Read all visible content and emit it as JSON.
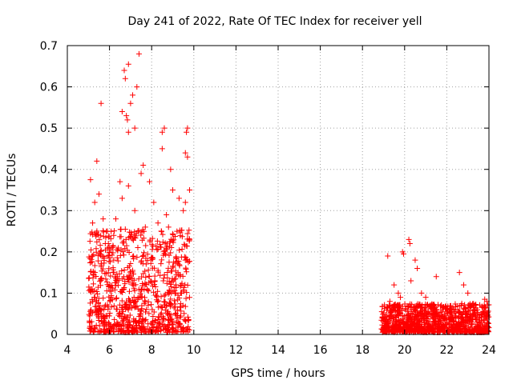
{
  "chart_data": {
    "type": "scatter",
    "title": "Day 241 of 2022, Rate Of TEC Index for receiver yell",
    "xlabel": "GPS time / hours",
    "ylabel": "ROTI / TECUs",
    "xlim": [
      4,
      24
    ],
    "ylim": [
      0,
      0.7
    ],
    "xticks": [
      "4",
      "6",
      "8",
      "10",
      "12",
      "14",
      "16",
      "18",
      "20",
      "22",
      "24"
    ],
    "yticks": [
      "0",
      "0.1",
      "0.2",
      "0.3",
      "0.4",
      "0.5",
      "0.6",
      "0.7"
    ],
    "grid": true,
    "marker": "plus",
    "color": "#ff0000",
    "series": [
      {
        "name": "ROTI",
        "points": [
          [
            5.6,
            0.56
          ],
          [
            5.4,
            0.42
          ],
          [
            5.1,
            0.375
          ],
          [
            5.3,
            0.32
          ],
          [
            5.5,
            0.34
          ],
          [
            5.7,
            0.28
          ],
          [
            5.2,
            0.27
          ],
          [
            5.8,
            0.22
          ],
          [
            5.9,
            0.19
          ],
          [
            6.6,
            0.54
          ],
          [
            6.8,
            0.53
          ],
          [
            6.85,
            0.52
          ],
          [
            6.9,
            0.49
          ],
          [
            6.7,
            0.64
          ],
          [
            6.75,
            0.62
          ],
          [
            6.9,
            0.655
          ],
          [
            7.4,
            0.68
          ],
          [
            7.1,
            0.58
          ],
          [
            7.3,
            0.6
          ],
          [
            7.0,
            0.56
          ],
          [
            7.2,
            0.5
          ],
          [
            6.5,
            0.37
          ],
          [
            6.6,
            0.33
          ],
          [
            6.9,
            0.36
          ],
          [
            7.6,
            0.41
          ],
          [
            7.5,
            0.39
          ],
          [
            7.2,
            0.3
          ],
          [
            6.3,
            0.28
          ],
          [
            7.9,
            0.37
          ],
          [
            8.1,
            0.32
          ],
          [
            8.5,
            0.45
          ],
          [
            8.6,
            0.5
          ],
          [
            8.5,
            0.49
          ],
          [
            8.9,
            0.4
          ],
          [
            9.0,
            0.35
          ],
          [
            8.7,
            0.29
          ],
          [
            9.3,
            0.33
          ],
          [
            9.6,
            0.44
          ],
          [
            9.7,
            0.5
          ],
          [
            9.65,
            0.49
          ],
          [
            9.7,
            0.43
          ],
          [
            9.8,
            0.35
          ],
          [
            9.6,
            0.32
          ],
          [
            9.5,
            0.3
          ],
          [
            8.3,
            0.27
          ],
          [
            8.8,
            0.26
          ],
          [
            9.2,
            0.25
          ],
          [
            7.7,
            0.26
          ],
          [
            6.2,
            0.24
          ],
          [
            19.2,
            0.19
          ],
          [
            19.5,
            0.12
          ],
          [
            19.7,
            0.1
          ],
          [
            19.9,
            0.2
          ],
          [
            19.95,
            0.195
          ],
          [
            20.2,
            0.23
          ],
          [
            20.25,
            0.22
          ],
          [
            20.5,
            0.18
          ],
          [
            20.6,
            0.16
          ],
          [
            20.3,
            0.13
          ],
          [
            20.8,
            0.1
          ],
          [
            21.0,
            0.09
          ],
          [
            21.5,
            0.14
          ],
          [
            22.6,
            0.15
          ],
          [
            22.8,
            0.12
          ],
          [
            23.0,
            0.1
          ],
          [
            23.8,
            0.085
          ],
          [
            23.9,
            0.08
          ],
          [
            19.3,
            0.08
          ],
          [
            19.8,
            0.09
          ],
          [
            21.2,
            0.07
          ],
          [
            22.2,
            0.06
          ],
          [
            23.3,
            0.06
          ],
          [
            21.8,
            0.06
          ]
        ]
      }
    ],
    "dense_clusters": [
      {
        "x_range": [
          5.0,
          9.8
        ],
        "y_range": [
          0.0,
          0.25
        ],
        "count": 900
      },
      {
        "x_range": [
          18.9,
          24.0
        ],
        "y_range": [
          0.0,
          0.07
        ],
        "count": 1100
      }
    ]
  }
}
